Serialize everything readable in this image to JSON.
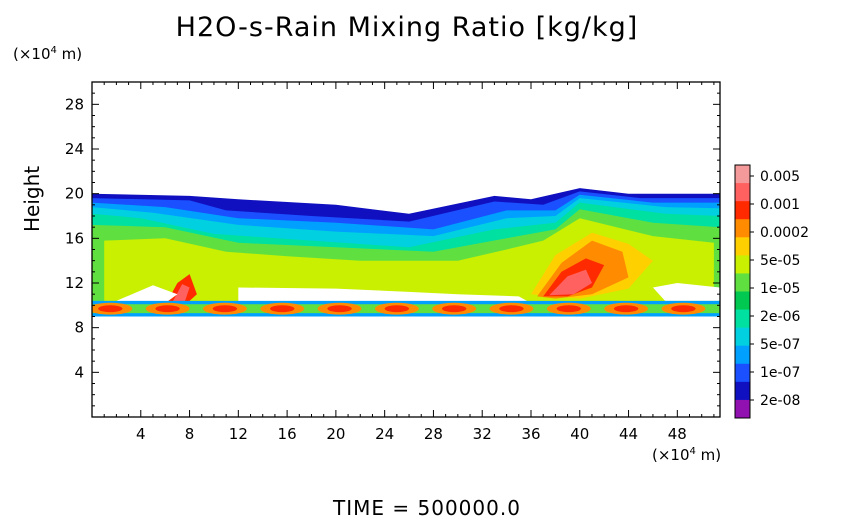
{
  "chart_data": {
    "type": "heatmap",
    "title": "H2O-s-Rain Mixing Ratio [kg/kg]",
    "ylabel": "Height",
    "y_unit": "(×10⁴ m)",
    "x_unit": "(×10⁴ m)",
    "xlim": [
      0,
      51.5
    ],
    "ylim": [
      0,
      30
    ],
    "x_ticks": [
      "4",
      "8",
      "12",
      "16",
      "20",
      "24",
      "28",
      "32",
      "36",
      "40",
      "44",
      "48"
    ],
    "y_ticks": [
      "4",
      "8",
      "12",
      "16",
      "20",
      "24",
      "28"
    ],
    "colorbar": {
      "labels": [
        "0.005",
        "0.001",
        "0.0002",
        "5e-05",
        "1e-05",
        "2e-06",
        "5e-07",
        "1e-07",
        "2e-08"
      ],
      "colors": [
        "#f49a9a",
        "#ff6060",
        "#ff2a00",
        "#ff8c00",
        "#ffd000",
        "#c8f000",
        "#60e040",
        "#00c850",
        "#00e0a0",
        "#00d0e0",
        "#00a0ff",
        "#1a50ff",
        "#1010c0",
        "#9010b0"
      ]
    },
    "field_layers": [
      {
        "level": 0,
        "color": "#9010b0",
        "polygon": [
          [
            10,
            17
          ],
          [
            18,
            16.5
          ],
          [
            28,
            17.5
          ],
          [
            33,
            18
          ],
          [
            30,
            16
          ],
          [
            20,
            15.5
          ],
          [
            10,
            16
          ]
        ]
      },
      {
        "level": 1,
        "color": "#1010c0",
        "polygon": [
          [
            0,
            20
          ],
          [
            8,
            19.8
          ],
          [
            12,
            19.5
          ],
          [
            20,
            19
          ],
          [
            26,
            18.2
          ],
          [
            33,
            19.8
          ],
          [
            36,
            19.5
          ],
          [
            40,
            20.5
          ],
          [
            44,
            20
          ],
          [
            51.5,
            20
          ],
          [
            51.5,
            9.2
          ],
          [
            0,
            9.2
          ]
        ]
      },
      {
        "level": 2,
        "color": "#1a50ff",
        "polygon": [
          [
            0,
            19.6
          ],
          [
            8,
            19.4
          ],
          [
            11,
            18.5
          ],
          [
            18,
            18
          ],
          [
            26,
            17.5
          ],
          [
            33,
            19.3
          ],
          [
            37,
            19
          ],
          [
            40,
            20.2
          ],
          [
            45,
            19.6
          ],
          [
            51.5,
            19.6
          ],
          [
            51.5,
            9.3
          ],
          [
            0,
            9.3
          ]
        ]
      },
      {
        "level": 3,
        "color": "#00a0ff",
        "polygon": [
          [
            0,
            19.2
          ],
          [
            6,
            18.8
          ],
          [
            12,
            17.8
          ],
          [
            20,
            17.4
          ],
          [
            28,
            16.8
          ],
          [
            34,
            18.5
          ],
          [
            38,
            18.5
          ],
          [
            40,
            19.9
          ],
          [
            46,
            19.2
          ],
          [
            51.5,
            19.2
          ],
          [
            51.5,
            9.4
          ],
          [
            0,
            9.4
          ]
        ]
      },
      {
        "level": 4,
        "color": "#00d0e0",
        "polygon": [
          [
            0,
            18.8
          ],
          [
            5,
            18.3
          ],
          [
            12,
            17.2
          ],
          [
            20,
            16.6
          ],
          [
            28,
            16.2
          ],
          [
            34,
            17.8
          ],
          [
            38,
            18
          ],
          [
            40,
            19.6
          ],
          [
            47,
            18.8
          ],
          [
            51.5,
            18.7
          ],
          [
            51.5,
            9.5
          ],
          [
            0,
            9.5
          ]
        ]
      },
      {
        "level": 5,
        "color": "#00e0a0",
        "polygon": [
          [
            0,
            18.2
          ],
          [
            4,
            17.8
          ],
          [
            10,
            16.4
          ],
          [
            18,
            15.8
          ],
          [
            26,
            15.2
          ],
          [
            33,
            16.8
          ],
          [
            38,
            17.4
          ],
          [
            40,
            19.2
          ],
          [
            47,
            18.2
          ],
          [
            51.5,
            18
          ],
          [
            51.5,
            9.6
          ],
          [
            0,
            9.6
          ]
        ]
      },
      {
        "level": 6,
        "color": "#60e040",
        "polygon": [
          [
            0,
            17.2
          ],
          [
            6,
            17
          ],
          [
            12,
            15.6
          ],
          [
            20,
            15.2
          ],
          [
            28,
            14.8
          ],
          [
            34,
            16
          ],
          [
            38,
            16.8
          ],
          [
            40,
            18.6
          ],
          [
            46,
            17.4
          ],
          [
            51.5,
            17
          ],
          [
            51.5,
            9.7
          ],
          [
            0,
            9.7
          ]
        ]
      },
      {
        "level": 7,
        "color": "#c8f000",
        "polygon": [
          [
            1,
            15.8
          ],
          [
            6,
            16
          ],
          [
            11,
            14.8
          ],
          [
            16,
            14.4
          ],
          [
            22,
            14
          ],
          [
            30,
            14
          ],
          [
            34,
            15
          ],
          [
            37,
            15.8
          ],
          [
            40,
            17.8
          ],
          [
            46,
            16.2
          ],
          [
            51,
            15.6
          ],
          [
            51,
            10
          ],
          [
            1,
            10
          ]
        ]
      },
      {
        "level": 8,
        "color": "#ffd000",
        "polygon": [
          [
            36,
            11
          ],
          [
            38,
            14.5
          ],
          [
            41,
            16.5
          ],
          [
            44,
            15.5
          ],
          [
            46,
            14
          ],
          [
            44,
            11.5
          ],
          [
            40,
            10.6
          ]
        ]
      },
      {
        "level": 9,
        "color": "#ff8c00",
        "polygon": [
          [
            36.5,
            10.8
          ],
          [
            38.5,
            13.8
          ],
          [
            41,
            15.8
          ],
          [
            43.5,
            14.8
          ],
          [
            44,
            12.5
          ],
          [
            41,
            11
          ],
          [
            38,
            10.6
          ]
        ]
      },
      {
        "level": 10,
        "color": "#ff2a00",
        "polygon": [
          [
            37,
            10.8
          ],
          [
            38.5,
            13
          ],
          [
            40.5,
            14.2
          ],
          [
            42,
            13.6
          ],
          [
            41,
            11.6
          ],
          [
            39,
            10.8
          ]
        ]
      },
      {
        "level": 11,
        "color": "#ff6060",
        "polygon": [
          [
            37.5,
            10.9
          ],
          [
            39,
            12.6
          ],
          [
            40.5,
            13.2
          ],
          [
            41,
            12
          ],
          [
            39.5,
            11
          ]
        ]
      },
      {
        "level": 12,
        "color": "#ff2a00",
        "polygon": [
          [
            6,
            10
          ],
          [
            7,
            12
          ],
          [
            8,
            12.8
          ],
          [
            8.6,
            11
          ],
          [
            7.6,
            10
          ]
        ]
      },
      {
        "level": 13,
        "color": "#ff6060",
        "polygon": [
          [
            6.6,
            10.3
          ],
          [
            7.4,
            11.9
          ],
          [
            8,
            11.6
          ],
          [
            7.6,
            10.3
          ]
        ]
      }
    ],
    "gaps": [
      {
        "polygon": [
          [
            12,
            11.6
          ],
          [
            20,
            11.5
          ],
          [
            26,
            11.2
          ],
          [
            30,
            11
          ],
          [
            35,
            10.8
          ],
          [
            36,
            10.2
          ],
          [
            30,
            9.9
          ],
          [
            20,
            10
          ],
          [
            12,
            10.2
          ]
        ]
      },
      {
        "polygon": [
          [
            2,
            10.4
          ],
          [
            5,
            11.8
          ],
          [
            7,
            11
          ],
          [
            6,
            10.2
          ]
        ]
      },
      {
        "polygon": [
          [
            46,
            11.6
          ],
          [
            48,
            12
          ],
          [
            51.5,
            11.6
          ],
          [
            51.5,
            10.4
          ],
          [
            47,
            10.4
          ]
        ]
      }
    ],
    "band": {
      "color_outer": "#00a0ff",
      "color_mid": "#60e040",
      "color_inner": "#ff8c00",
      "color_core": "#ff2a00",
      "y_bottom": 9.0,
      "y_top": 10.4
    }
  },
  "time_label": "TIME =  500000.0"
}
